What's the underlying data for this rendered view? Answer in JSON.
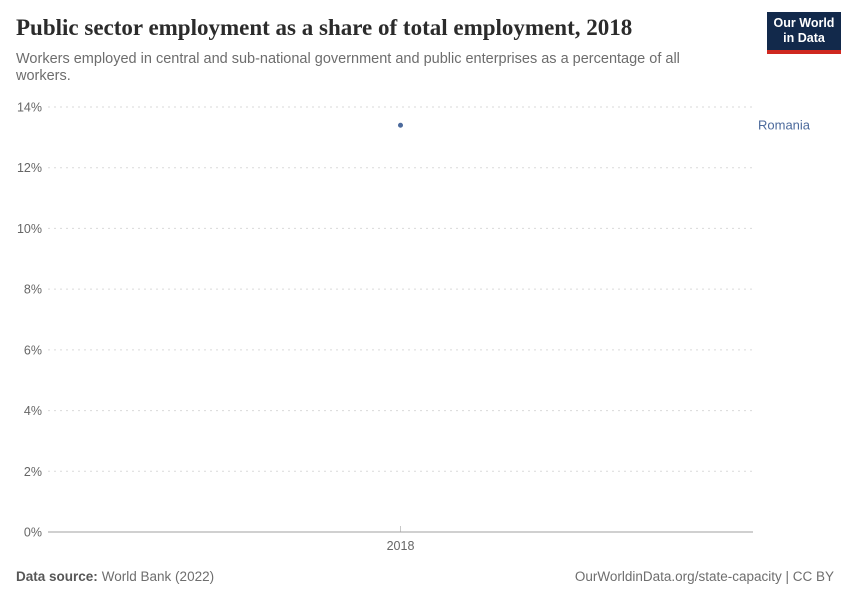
{
  "header": {
    "title": "Public sector employment as a share of total employment, 2018",
    "subtitle": "Workers employed in central and sub-national government and public enterprises as a percentage of all workers."
  },
  "logo": {
    "line1": "Our World",
    "line2": "in Data"
  },
  "footer": {
    "source_label": "Data source:",
    "source_value": "World Bank (2022)",
    "attribution": "OurWorldinData.org/state-capacity | CC BY"
  },
  "colors": {
    "accent_blue": "#4c6a9c",
    "logo_navy": "#12294b",
    "logo_red": "#cf2820",
    "gridline": "#dadada",
    "axis_line": "#a0a0a0",
    "tick_label": "#666666"
  },
  "chart_data": {
    "type": "scatter",
    "title": "Public sector employment as a share of total employment, 2018",
    "xlabel": "",
    "ylabel": "",
    "x": [
      2018
    ],
    "xticks": [
      2018
    ],
    "series": [
      {
        "name": "Romania",
        "values": [
          13.4
        ],
        "color": "#4c6a9c"
      }
    ],
    "ylim": [
      0,
      14
    ],
    "yticks": [
      0,
      2,
      4,
      6,
      8,
      10,
      12,
      14
    ],
    "ytick_suffix": "%",
    "grid": true,
    "legend": "entity-label-right"
  }
}
